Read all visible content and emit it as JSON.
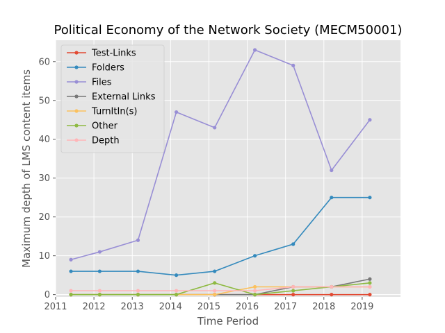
{
  "chart_data": {
    "type": "line",
    "title": "Political Economy of the Network Society (MECM50001)",
    "xlabel": "Time Period",
    "ylabel": "Maximum depth of LMS content items",
    "xlim": [
      2011.0,
      2020.0
    ],
    "ylim": [
      -0.6,
      65.5
    ],
    "xticks": [
      2011,
      2012,
      2013,
      2014,
      2015,
      2016,
      2017,
      2018,
      2019
    ],
    "yticks": [
      0,
      10,
      20,
      30,
      40,
      50,
      60
    ],
    "grid": true,
    "legend_position": "top-left",
    "x": [
      2011.4,
      2012.15,
      2013.15,
      2014.15,
      2015.15,
      2016.2,
      2017.2,
      2018.2,
      2019.2
    ],
    "series": [
      {
        "name": "Test-Links",
        "color": "#e24a33",
        "values": [
          0,
          0,
          0,
          0,
          0,
          0,
          0,
          0,
          0
        ]
      },
      {
        "name": "Folders",
        "color": "#348abd",
        "values": [
          6,
          6,
          6,
          5,
          6,
          10,
          13,
          25,
          25
        ]
      },
      {
        "name": "Files",
        "color": "#988ed5",
        "values": [
          9,
          11,
          14,
          47,
          43,
          63,
          59,
          32,
          45
        ]
      },
      {
        "name": "External Links",
        "color": "#777777",
        "values": [
          0,
          0,
          0,
          0,
          0,
          0,
          2,
          2,
          4
        ]
      },
      {
        "name": "TurnItIn(s)",
        "color": "#fbc15e",
        "values": [
          0,
          0,
          0,
          0,
          0,
          2,
          2,
          2,
          2
        ]
      },
      {
        "name": "Other",
        "color": "#8eba42",
        "values": [
          0,
          0,
          0,
          0,
          3,
          0,
          1,
          2,
          3
        ]
      },
      {
        "name": "Depth",
        "color": "#ffb5b8",
        "values": [
          1,
          1,
          1,
          1,
          1,
          1,
          2,
          2,
          2
        ]
      }
    ]
  }
}
